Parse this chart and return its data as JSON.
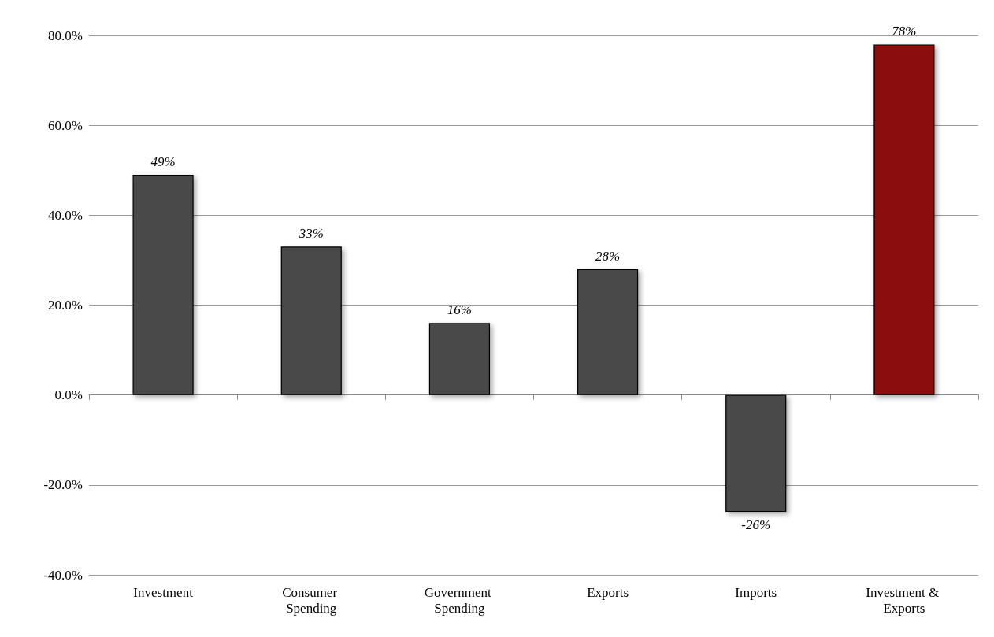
{
  "chart_data": {
    "type": "bar",
    "categories": [
      "Investment",
      "Consumer Spending",
      "Government Spending",
      "Exports",
      "Imports",
      "Investment & Exports"
    ],
    "values": [
      49,
      33,
      16,
      28,
      -26,
      78
    ],
    "colors": [
      "#4a4a4a",
      "#4a4a4a",
      "#4a4a4a",
      "#4a4a4a",
      "#4a4a4a",
      "#8b0a0a"
    ],
    "value_labels": [
      "49%",
      "33%",
      "16%",
      "28%",
      "-26%",
      "78%"
    ],
    "ylim": [
      -40,
      80
    ],
    "yticks": [
      {
        "value": -40,
        "label": "-40.0%"
      },
      {
        "value": -20,
        "label": "-20.0%"
      },
      {
        "value": 0,
        "label": "0.0%"
      },
      {
        "value": 20,
        "label": "20.0%"
      },
      {
        "value": 40,
        "label": "40.0%"
      },
      {
        "value": 60,
        "label": "60.0%"
      },
      {
        "value": 80,
        "label": "80.0%"
      }
    ],
    "grid": "y"
  }
}
